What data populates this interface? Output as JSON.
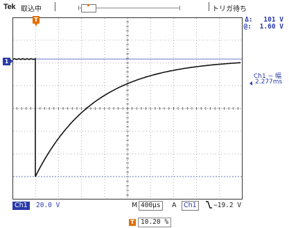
{
  "header": {
    "brand": "Tek",
    "acquisition_state": "取込中",
    "trigger_state": "トリガ待ち",
    "record_position_marker": "T"
  },
  "measurements": {
    "delta_symbol": "Δ:",
    "delta_value": "101 V",
    "at_symbol": "@:",
    "at_value": "1.60 V"
  },
  "cursor_readout": {
    "label": "Ch1 − 幅",
    "value": "2.277ms"
  },
  "markers": {
    "trigger_marker": "T",
    "channel_marker": "1"
  },
  "bottom": {
    "channel_label": "Ch1",
    "volts_per_div": "20.0 V",
    "timebase_prefix": "M",
    "timebase": "400μs",
    "trigger_prefix": "A",
    "trigger_source": "Ch1",
    "trigger_slope_icon": "falling-edge-icon",
    "trigger_slope_glyph": "⌇",
    "trigger_level": "−19.2 V"
  },
  "horizontal_position": {
    "marker": "T",
    "value": "10.20 %"
  },
  "colors": {
    "channel": "#2a3aa8",
    "trigger": "#e07000",
    "trace": "#111111"
  }
}
